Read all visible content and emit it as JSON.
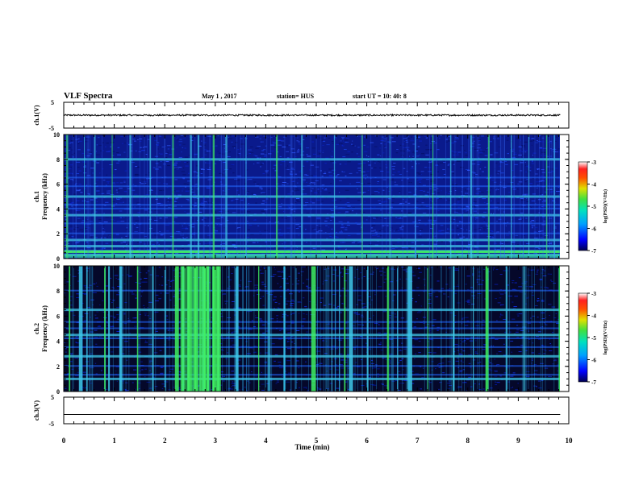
{
  "header": {
    "title": "VLF Spectra",
    "date": "May 1  , 2017",
    "station": "station= HUS",
    "start_ut": "start  UT  =   10: 40: 8"
  },
  "colors": {
    "bg": "#ffffff",
    "axis": "#000000",
    "spec_dark": "#000010",
    "spec_blue": "#1030d0",
    "spec_cyan": "#40c8e8",
    "spec_green": "#40f060"
  },
  "chart_data": [
    {
      "type": "line",
      "name": "channel-1-waveform",
      "ylabel": "ch.1(V)",
      "ylim": [
        -5,
        5
      ],
      "yticks": [
        "5",
        "-5"
      ],
      "xlim": [
        0,
        10
      ],
      "description_of_values": "noise waveform centered at 0 with amplitude about 0.3 V",
      "amplitude": 0.3
    },
    {
      "type": "heatmap",
      "name": "channel-1-spectrogram",
      "ylabel_top": "ch.1",
      "ylabel": "Frequency (kHz)",
      "ylim": [
        0,
        10
      ],
      "yticks": [
        "0",
        "2",
        "4",
        "6",
        "8",
        "10"
      ],
      "xlim": [
        0,
        9.83
      ],
      "colorbar": {
        "label": "log(PSD)(V²/Hz)",
        "ticks": [
          "-3",
          "-4",
          "-5",
          "-6",
          "-7"
        ],
        "range": [
          -7,
          -3
        ]
      },
      "bands_khz": [
        0.3,
        0.6,
        1.0,
        1.5,
        2.0,
        2.8,
        3.5,
        4.0,
        4.3,
        5.0,
        5.8,
        6.5,
        8.0
      ],
      "impulses_min": [
        0.05,
        0.4,
        0.6,
        0.95,
        1.3,
        1.7,
        2.15,
        2.5,
        2.65,
        2.95,
        3.2,
        3.6,
        4.2,
        4.7,
        5.35,
        5.9,
        6.45,
        6.95,
        7.3,
        7.65,
        8.05,
        8.4,
        8.85,
        9.2,
        9.55,
        9.7
      ]
    },
    {
      "type": "heatmap",
      "name": "channel-2-spectrogram",
      "ylabel_top": "ch.2",
      "ylabel": "Frequency (kHz)",
      "ylim": [
        0,
        10
      ],
      "yticks": [
        "0",
        "2",
        "4",
        "6",
        "8",
        "10"
      ],
      "xlim": [
        0,
        9.83
      ],
      "colorbar": {
        "label": "log(PSD)(V²/Hz)",
        "ticks": [
          "-3",
          "-4",
          "-5",
          "-6",
          "-7"
        ],
        "range": [
          -7,
          -3
        ]
      },
      "bands_khz": [
        1.0,
        1.3,
        2.0,
        2.8,
        3.5,
        4.2,
        4.5,
        5.0,
        5.5,
        6.5,
        8.0
      ],
      "impulses_min": [
        0.1,
        0.3,
        0.45,
        0.8,
        0.88,
        1.1,
        1.45,
        1.75,
        2.0,
        2.2,
        2.35,
        2.45,
        2.6,
        2.75,
        2.85,
        2.95,
        3.05,
        3.4,
        3.85,
        4.05,
        4.35,
        4.9,
        5.3,
        5.45,
        5.55,
        5.65,
        6.0,
        6.4,
        6.6,
        6.8,
        7.2,
        7.7,
        8.1,
        8.35,
        8.75,
        9.1,
        9.8
      ]
    },
    {
      "type": "line",
      "name": "channel-3-waveform",
      "ylabel": "ch.3(V)",
      "ylim": [
        -5,
        5
      ],
      "yticks": [
        "5",
        "-5"
      ],
      "xlim": [
        0,
        10
      ],
      "value": -1.5
    }
  ],
  "xaxis": {
    "label": "Time  (min)",
    "range": [
      0,
      10
    ],
    "ticks": [
      "0",
      "1",
      "2",
      "3",
      "4",
      "5",
      "6",
      "7",
      "8",
      "9",
      "10"
    ]
  }
}
